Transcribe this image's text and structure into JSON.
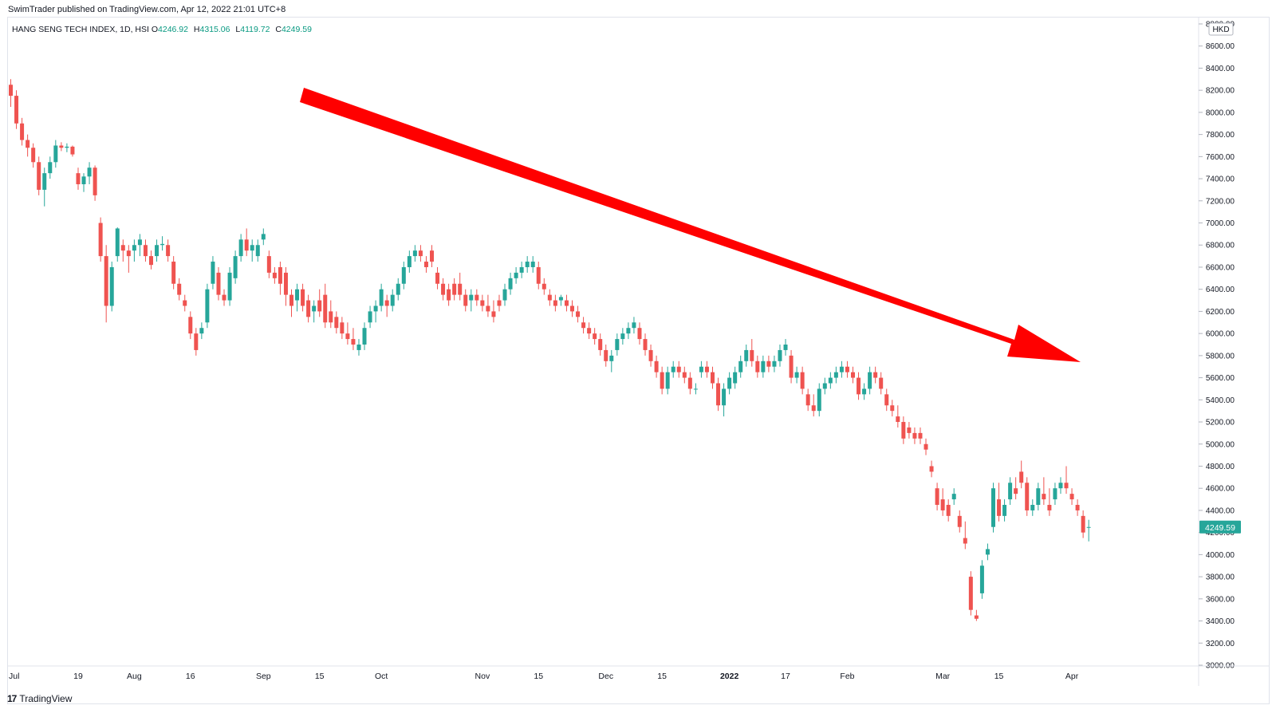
{
  "header": {
    "publish_line": "SwimTrader published on TradingView.com, Apr 12, 2022 21:01 UTC+8"
  },
  "legend": {
    "symbol": "HANG SENG TECH INDEX, 1D, HSI",
    "open_label": "O",
    "open": "4246.92",
    "high_label": "H",
    "high": "4315.06",
    "low_label": "L",
    "low": "4119.72",
    "close_label": "C",
    "close": "4249.59"
  },
  "footer": {
    "brand": "TradingView",
    "logo": "17"
  },
  "colors": {
    "up": "#26a69a",
    "down": "#ef5350",
    "arrow": "#ff0000",
    "badge": "#26a69a"
  },
  "chart_data": {
    "type": "candlestick",
    "currency_label": "HKD",
    "last_price_label": "4249.59",
    "ylim": [
      3000,
      8800
    ],
    "y_ticks": [
      "3000.00",
      "3200.00",
      "3400.00",
      "3600.00",
      "3800.00",
      "4000.00",
      "4200.00",
      "4400.00",
      "4600.00",
      "4800.00",
      "5000.00",
      "5200.00",
      "5400.00",
      "5600.00",
      "5800.00",
      "6000.00",
      "6200.00",
      "6400.00",
      "6600.00",
      "6800.00",
      "7000.00",
      "7200.00",
      "7400.00",
      "7600.00",
      "7800.00",
      "8000.00",
      "8200.00",
      "8400.00",
      "8600.00",
      "8800.00"
    ],
    "x_ticks": [
      {
        "label": "Jul",
        "bar": 0
      },
      {
        "label": "19",
        "bar": 12
      },
      {
        "label": "Aug",
        "bar": 22
      },
      {
        "label": "16",
        "bar": 32
      },
      {
        "label": "Sep",
        "bar": 45
      },
      {
        "label": "15",
        "bar": 55
      },
      {
        "label": "Oct",
        "bar": 66
      },
      {
        "label": "Nov",
        "bar": 84
      },
      {
        "label": "15",
        "bar": 94
      },
      {
        "label": "Dec",
        "bar": 106
      },
      {
        "label": "15",
        "bar": 116
      },
      {
        "label": "2022",
        "bar": 128
      },
      {
        "label": "17",
        "bar": 138
      },
      {
        "label": "Feb",
        "bar": 149
      },
      {
        "label": "Mar",
        "bar": 166
      },
      {
        "label": "15",
        "bar": 176
      },
      {
        "label": "Apr",
        "bar": 189
      }
    ],
    "candles": [
      [
        8250,
        8300,
        8050,
        8150
      ],
      [
        8150,
        8200,
        7850,
        7900
      ],
      [
        7900,
        7950,
        7700,
        7750
      ],
      [
        7750,
        7800,
        7600,
        7680
      ],
      [
        7680,
        7720,
        7500,
        7550
      ],
      [
        7550,
        7600,
        7250,
        7300
      ],
      [
        7300,
        7500,
        7150,
        7450
      ],
      [
        7450,
        7600,
        7400,
        7550
      ],
      [
        7550,
        7750,
        7500,
        7700
      ],
      [
        7700,
        7730,
        7650,
        7680
      ],
      [
        7680,
        7720,
        7640,
        7690
      ],
      [
        7690,
        7700,
        7600,
        7620
      ],
      [
        7450,
        7500,
        7300,
        7350
      ],
      [
        7350,
        7450,
        7280,
        7420
      ],
      [
        7420,
        7550,
        7350,
        7500
      ],
      [
        7500,
        7520,
        7200,
        7250
      ],
      [
        7000,
        7050,
        6650,
        6700
      ],
      [
        6700,
        6800,
        6100,
        6250
      ],
      [
        6250,
        6650,
        6200,
        6600
      ],
      [
        6700,
        6960,
        6650,
        6950
      ],
      [
        6800,
        6850,
        6650,
        6750
      ],
      [
        6750,
        6800,
        6550,
        6700
      ],
      [
        6750,
        6850,
        6650,
        6800
      ],
      [
        6800,
        6900,
        6700,
        6850
      ],
      [
        6800,
        6850,
        6650,
        6700
      ],
      [
        6700,
        6750,
        6580,
        6620
      ],
      [
        6700,
        6850,
        6650,
        6800
      ],
      [
        6800,
        6880,
        6750,
        6810
      ],
      [
        6800,
        6850,
        6650,
        6700
      ],
      [
        6650,
        6700,
        6400,
        6450
      ],
      [
        6450,
        6500,
        6300,
        6350
      ],
      [
        6300,
        6350,
        6200,
        6250
      ],
      [
        6150,
        6200,
        5950,
        6000
      ],
      [
        6000,
        6050,
        5800,
        5850
      ],
      [
        6000,
        6100,
        5950,
        6050
      ],
      [
        6100,
        6450,
        6050,
        6400
      ],
      [
        6450,
        6700,
        6400,
        6650
      ],
      [
        6550,
        6600,
        6300,
        6350
      ],
      [
        6350,
        6400,
        6250,
        6300
      ],
      [
        6300,
        6600,
        6250,
        6550
      ],
      [
        6500,
        6750,
        6450,
        6700
      ],
      [
        6700,
        6900,
        6650,
        6850
      ],
      [
        6850,
        6950,
        6700,
        6750
      ],
      [
        6750,
        6850,
        6650,
        6800
      ],
      [
        6700,
        6850,
        6650,
        6800
      ],
      [
        6850,
        6950,
        6800,
        6900
      ],
      [
        6700,
        6750,
        6500,
        6550
      ],
      [
        6550,
        6600,
        6450,
        6500
      ],
      [
        6600,
        6650,
        6350,
        6450
      ],
      [
        6550,
        6600,
        6250,
        6350
      ],
      [
        6350,
        6400,
        6150,
        6250
      ],
      [
        6300,
        6450,
        6200,
        6400
      ],
      [
        6400,
        6450,
        6200,
        6250
      ],
      [
        6300,
        6350,
        6100,
        6150
      ],
      [
        6200,
        6300,
        6100,
        6250
      ],
      [
        6300,
        6400,
        6150,
        6200
      ],
      [
        6350,
        6450,
        6050,
        6100
      ],
      [
        6200,
        6300,
        6050,
        6100
      ],
      [
        6150,
        6200,
        6000,
        6050
      ],
      [
        6100,
        6150,
        5950,
        6000
      ],
      [
        6000,
        6100,
        5900,
        5950
      ],
      [
        5950,
        6050,
        5850,
        5900
      ],
      [
        5850,
        5950,
        5800,
        5900
      ],
      [
        5900,
        6100,
        5850,
        6050
      ],
      [
        6100,
        6250,
        6050,
        6200
      ],
      [
        6200,
        6300,
        6100,
        6250
      ],
      [
        6250,
        6450,
        6200,
        6400
      ],
      [
        6300,
        6350,
        6150,
        6250
      ],
      [
        6250,
        6400,
        6200,
        6350
      ],
      [
        6350,
        6500,
        6300,
        6450
      ],
      [
        6450,
        6650,
        6400,
        6600
      ],
      [
        6600,
        6750,
        6550,
        6700
      ],
      [
        6700,
        6800,
        6650,
        6750
      ],
      [
        6750,
        6800,
        6650,
        6700
      ],
      [
        6650,
        6700,
        6550,
        6600
      ],
      [
        6750,
        6800,
        6600,
        6650
      ],
      [
        6550,
        6600,
        6400,
        6450
      ],
      [
        6450,
        6500,
        6300,
        6350
      ],
      [
        6400,
        6450,
        6250,
        6300
      ],
      [
        6450,
        6500,
        6300,
        6350
      ],
      [
        6450,
        6550,
        6300,
        6350
      ],
      [
        6350,
        6400,
        6200,
        6250
      ],
      [
        6300,
        6400,
        6200,
        6350
      ],
      [
        6350,
        6400,
        6250,
        6300
      ],
      [
        6300,
        6350,
        6200,
        6250
      ],
      [
        6250,
        6350,
        6150,
        6200
      ],
      [
        6200,
        6300,
        6100,
        6150
      ],
      [
        6300,
        6350,
        6200,
        6250
      ],
      [
        6300,
        6450,
        6250,
        6400
      ],
      [
        6400,
        6550,
        6350,
        6500
      ],
      [
        6500,
        6600,
        6450,
        6550
      ],
      [
        6550,
        6650,
        6500,
        6600
      ],
      [
        6600,
        6700,
        6550,
        6650
      ],
      [
        6600,
        6700,
        6550,
        6650
      ],
      [
        6600,
        6650,
        6400,
        6450
      ],
      [
        6450,
        6500,
        6350,
        6400
      ],
      [
        6350,
        6400,
        6250,
        6300
      ],
      [
        6300,
        6350,
        6200,
        6250
      ],
      [
        6300,
        6350,
        6250,
        6330
      ],
      [
        6300,
        6350,
        6200,
        6250
      ],
      [
        6250,
        6300,
        6150,
        6200
      ],
      [
        6200,
        6250,
        6100,
        6150
      ],
      [
        6100,
        6150,
        6000,
        6050
      ],
      [
        6050,
        6100,
        5950,
        6000
      ],
      [
        6000,
        6050,
        5900,
        5950
      ],
      [
        5950,
        6000,
        5800,
        5850
      ],
      [
        5850,
        5900,
        5700,
        5750
      ],
      [
        5750,
        5850,
        5650,
        5800
      ],
      [
        5850,
        6000,
        5800,
        5950
      ],
      [
        5950,
        6050,
        5900,
        6000
      ],
      [
        6000,
        6100,
        5950,
        6050
      ],
      [
        6050,
        6150,
        6000,
        6100
      ],
      [
        6050,
        6100,
        5900,
        5950
      ],
      [
        5950,
        6000,
        5800,
        5850
      ],
      [
        5850,
        5900,
        5700,
        5750
      ],
      [
        5750,
        5800,
        5600,
        5650
      ],
      [
        5650,
        5700,
        5450,
        5500
      ],
      [
        5500,
        5700,
        5450,
        5650
      ],
      [
        5650,
        5750,
        5600,
        5700
      ],
      [
        5700,
        5750,
        5600,
        5650
      ],
      [
        5650,
        5700,
        5550,
        5600
      ],
      [
        5600,
        5650,
        5450,
        5500
      ],
      [
        5500,
        5550,
        5450,
        5500
      ],
      [
        5650,
        5750,
        5600,
        5700
      ],
      [
        5700,
        5750,
        5600,
        5650
      ],
      [
        5650,
        5700,
        5500,
        5550
      ],
      [
        5550,
        5600,
        5300,
        5350
      ],
      [
        5350,
        5550,
        5250,
        5500
      ],
      [
        5500,
        5650,
        5450,
        5600
      ],
      [
        5550,
        5700,
        5500,
        5650
      ],
      [
        5650,
        5800,
        5600,
        5750
      ],
      [
        5750,
        5900,
        5700,
        5850
      ],
      [
        5850,
        5950,
        5700,
        5750
      ],
      [
        5750,
        5800,
        5600,
        5650
      ],
      [
        5650,
        5800,
        5600,
        5750
      ],
      [
        5750,
        5800,
        5650,
        5700
      ],
      [
        5700,
        5800,
        5650,
        5750
      ],
      [
        5750,
        5900,
        5700,
        5850
      ],
      [
        5850,
        5950,
        5800,
        5900
      ],
      [
        5800,
        5850,
        5550,
        5600
      ],
      [
        5600,
        5700,
        5550,
        5650
      ],
      [
        5650,
        5700,
        5450,
        5500
      ],
      [
        5450,
        5500,
        5300,
        5350
      ],
      [
        5350,
        5450,
        5250,
        5300
      ],
      [
        5300,
        5550,
        5250,
        5500
      ],
      [
        5500,
        5600,
        5450,
        5550
      ],
      [
        5550,
        5650,
        5500,
        5600
      ],
      [
        5600,
        5700,
        5550,
        5650
      ],
      [
        5650,
        5750,
        5600,
        5700
      ],
      [
        5700,
        5750,
        5600,
        5650
      ],
      [
        5650,
        5700,
        5550,
        5600
      ],
      [
        5600,
        5650,
        5400,
        5450
      ],
      [
        5450,
        5550,
        5400,
        5500
      ],
      [
        5500,
        5700,
        5450,
        5650
      ],
      [
        5650,
        5700,
        5550,
        5600
      ],
      [
        5600,
        5650,
        5450,
        5500
      ],
      [
        5450,
        5500,
        5300,
        5350
      ],
      [
        5350,
        5400,
        5250,
        5300
      ],
      [
        5250,
        5350,
        5150,
        5200
      ],
      [
        5200,
        5250,
        5000,
        5050
      ],
      [
        5150,
        5200,
        5050,
        5100
      ],
      [
        5100,
        5150,
        5000,
        5050
      ],
      [
        5100,
        5150,
        5000,
        5050
      ],
      [
        5000,
        5050,
        4900,
        4950
      ],
      [
        4800,
        4850,
        4700,
        4750
      ],
      [
        4600,
        4650,
        4400,
        4450
      ],
      [
        4500,
        4600,
        4350,
        4400
      ],
      [
        4450,
        4500,
        4300,
        4350
      ],
      [
        4500,
        4600,
        4450,
        4550
      ],
      [
        4350,
        4400,
        4200,
        4250
      ],
      [
        4150,
        4300,
        4050,
        4100
      ],
      [
        3800,
        3850,
        3450,
        3500
      ],
      [
        3450,
        3500,
        3400,
        3420
      ],
      [
        3650,
        3950,
        3600,
        3900
      ],
      [
        4000,
        4100,
        3950,
        4050
      ],
      [
        4250,
        4650,
        4200,
        4600
      ],
      [
        4500,
        4650,
        4300,
        4350
      ],
      [
        4350,
        4500,
        4300,
        4450
      ],
      [
        4500,
        4700,
        4450,
        4650
      ],
      [
        4600,
        4700,
        4500,
        4550
      ],
      [
        4750,
        4850,
        4600,
        4650
      ],
      [
        4650,
        4700,
        4350,
        4400
      ],
      [
        4400,
        4500,
        4350,
        4450
      ],
      [
        4450,
        4650,
        4400,
        4600
      ],
      [
        4550,
        4700,
        4450,
        4500
      ],
      [
        4450,
        4600,
        4350,
        4400
      ],
      [
        4500,
        4650,
        4450,
        4600
      ],
      [
        4600,
        4700,
        4550,
        4650
      ],
      [
        4650,
        4800,
        4550,
        4600
      ],
      [
        4550,
        4600,
        4450,
        4500
      ],
      [
        4450,
        4500,
        4350,
        4400
      ],
      [
        4350,
        4400,
        4150,
        4200
      ],
      [
        4246.92,
        4315.06,
        4119.72,
        4249.59
      ]
    ]
  }
}
